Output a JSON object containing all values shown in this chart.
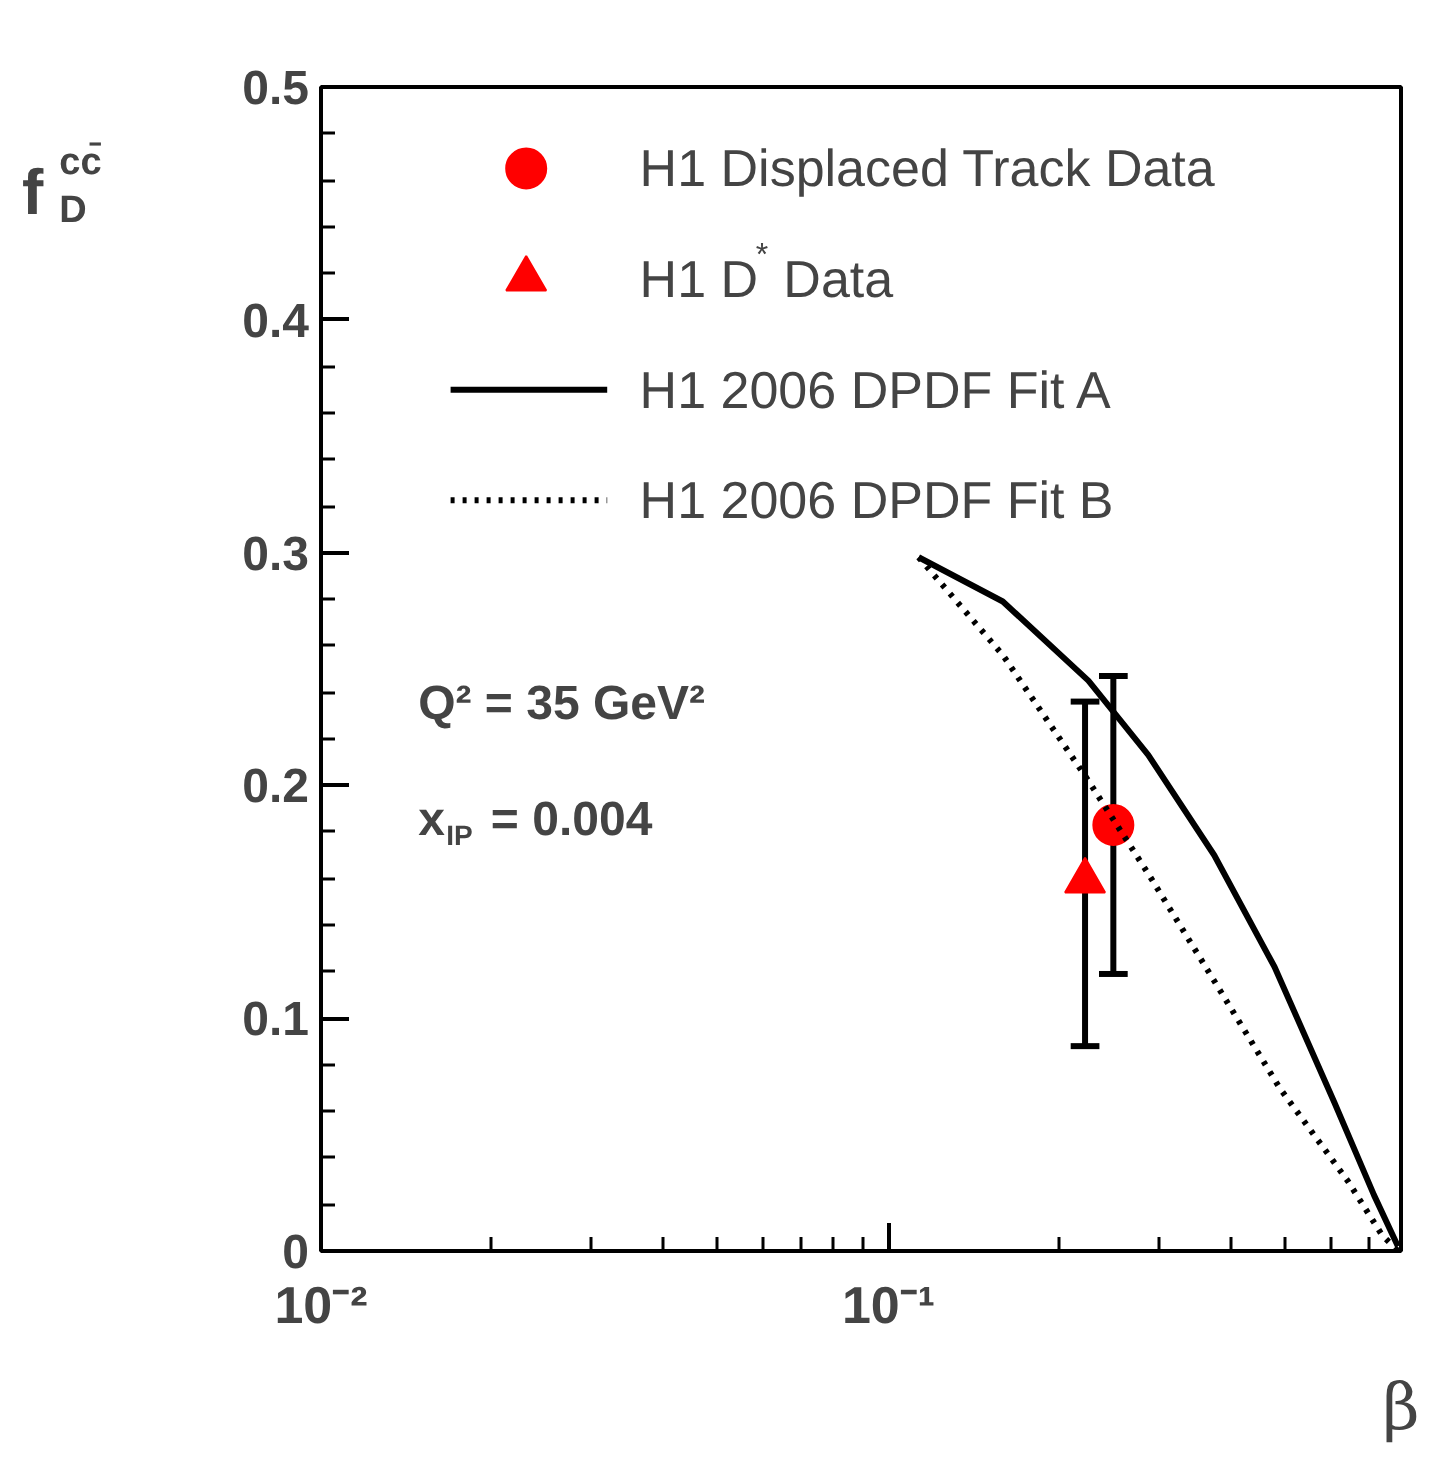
{
  "chart_data": {
    "type": "line",
    "xlabel": "β",
    "ylabel": "f$^{cc̄}$$_{D}$",
    "log": "x",
    "xlim": [
      0.01,
      0.8
    ],
    "ylim": [
      0,
      0.5
    ],
    "xticks": [
      {
        "value": 0.01,
        "label": "10⁻²"
      },
      {
        "value": 0.1,
        "label": "10⁻¹"
      }
    ],
    "yticks": [
      0,
      0.1,
      0.2,
      0.3,
      0.4,
      0.5
    ],
    "legend": "top",
    "annotations": [
      "Q² = 35 GeV²",
      "x$_{IP}$ = 0.004"
    ],
    "series": [
      {
        "name": "H1 Displaced Track Data",
        "type": "scatter",
        "marker": "circle",
        "color": "#ff0000",
        "x": [
          0.249
        ],
        "values": [
          0.183
        ],
        "errors": [
          [
            0.119,
            0.247
          ]
        ]
      },
      {
        "name": "H1 D$^{*}$ Data",
        "type": "scatter",
        "marker": "triangle",
        "color": "#ff0000",
        "x": [
          0.222
        ],
        "values": [
          0.159
        ],
        "errors": [
          [
            0.088,
            0.236
          ]
        ]
      },
      {
        "name": "H1 2006 DPDF Fit A",
        "line_style": "solid",
        "color": "#000000",
        "x": [
          0.113,
          0.159,
          0.225,
          0.287,
          0.375,
          0.479,
          0.61,
          0.717,
          0.79
        ],
        "values": [
          0.298,
          0.279,
          0.245,
          0.213,
          0.17,
          0.122,
          0.064,
          0.024,
          0.002
        ]
      },
      {
        "name": "H1 2006 DPDF Fit B",
        "line_style": "dotted",
        "color": "#000000",
        "x": [
          0.113,
          0.159,
          0.225,
          0.287,
          0.375,
          0.489,
          0.645,
          0.74,
          0.79
        ],
        "values": [
          0.298,
          0.256,
          0.202,
          0.162,
          0.116,
          0.07,
          0.03,
          0.007,
          0.0
        ]
      }
    ]
  }
}
